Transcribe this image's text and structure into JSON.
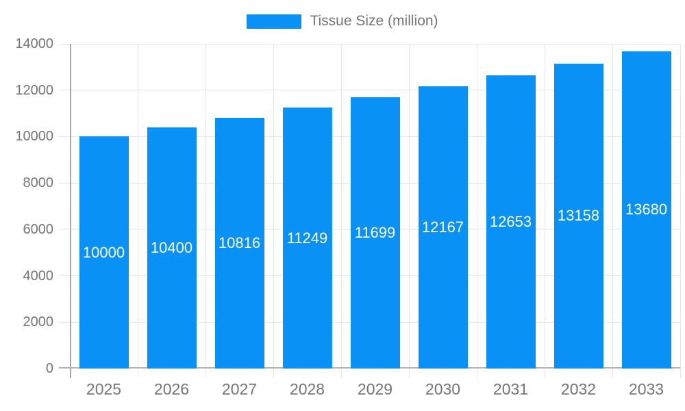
{
  "legend": {
    "label": "Tissue Size (million)"
  },
  "chart_data": {
    "type": "bar",
    "title": "Tissue Size (million)",
    "categories": [
      "2025",
      "2026",
      "2027",
      "2028",
      "2029",
      "2030",
      "2031",
      "2032",
      "2033"
    ],
    "series": [
      {
        "name": "Tissue Size (million)",
        "values": [
          10000,
          10400,
          10816,
          11249,
          11699,
          12167,
          12653,
          13158,
          13680
        ]
      }
    ],
    "data_labels": [
      "10000",
      "10400",
      "10816",
      "11249",
      "11699",
      "12167",
      "12653",
      "13158",
      "13680"
    ],
    "xlabel": "",
    "ylabel": "",
    "ylim": [
      0,
      14000
    ],
    "yticks": [
      0,
      2000,
      4000,
      6000,
      8000,
      10000,
      12000,
      14000
    ],
    "grid": true,
    "legend_position": "top-center"
  },
  "colors": {
    "bar": "#0A91F5",
    "bar_label": "#FFFFFF",
    "axis_text": "#757575",
    "grid_line": "#E4E4E4",
    "axis_line": "#B3B3B3",
    "background": "#FFFFFF"
  }
}
